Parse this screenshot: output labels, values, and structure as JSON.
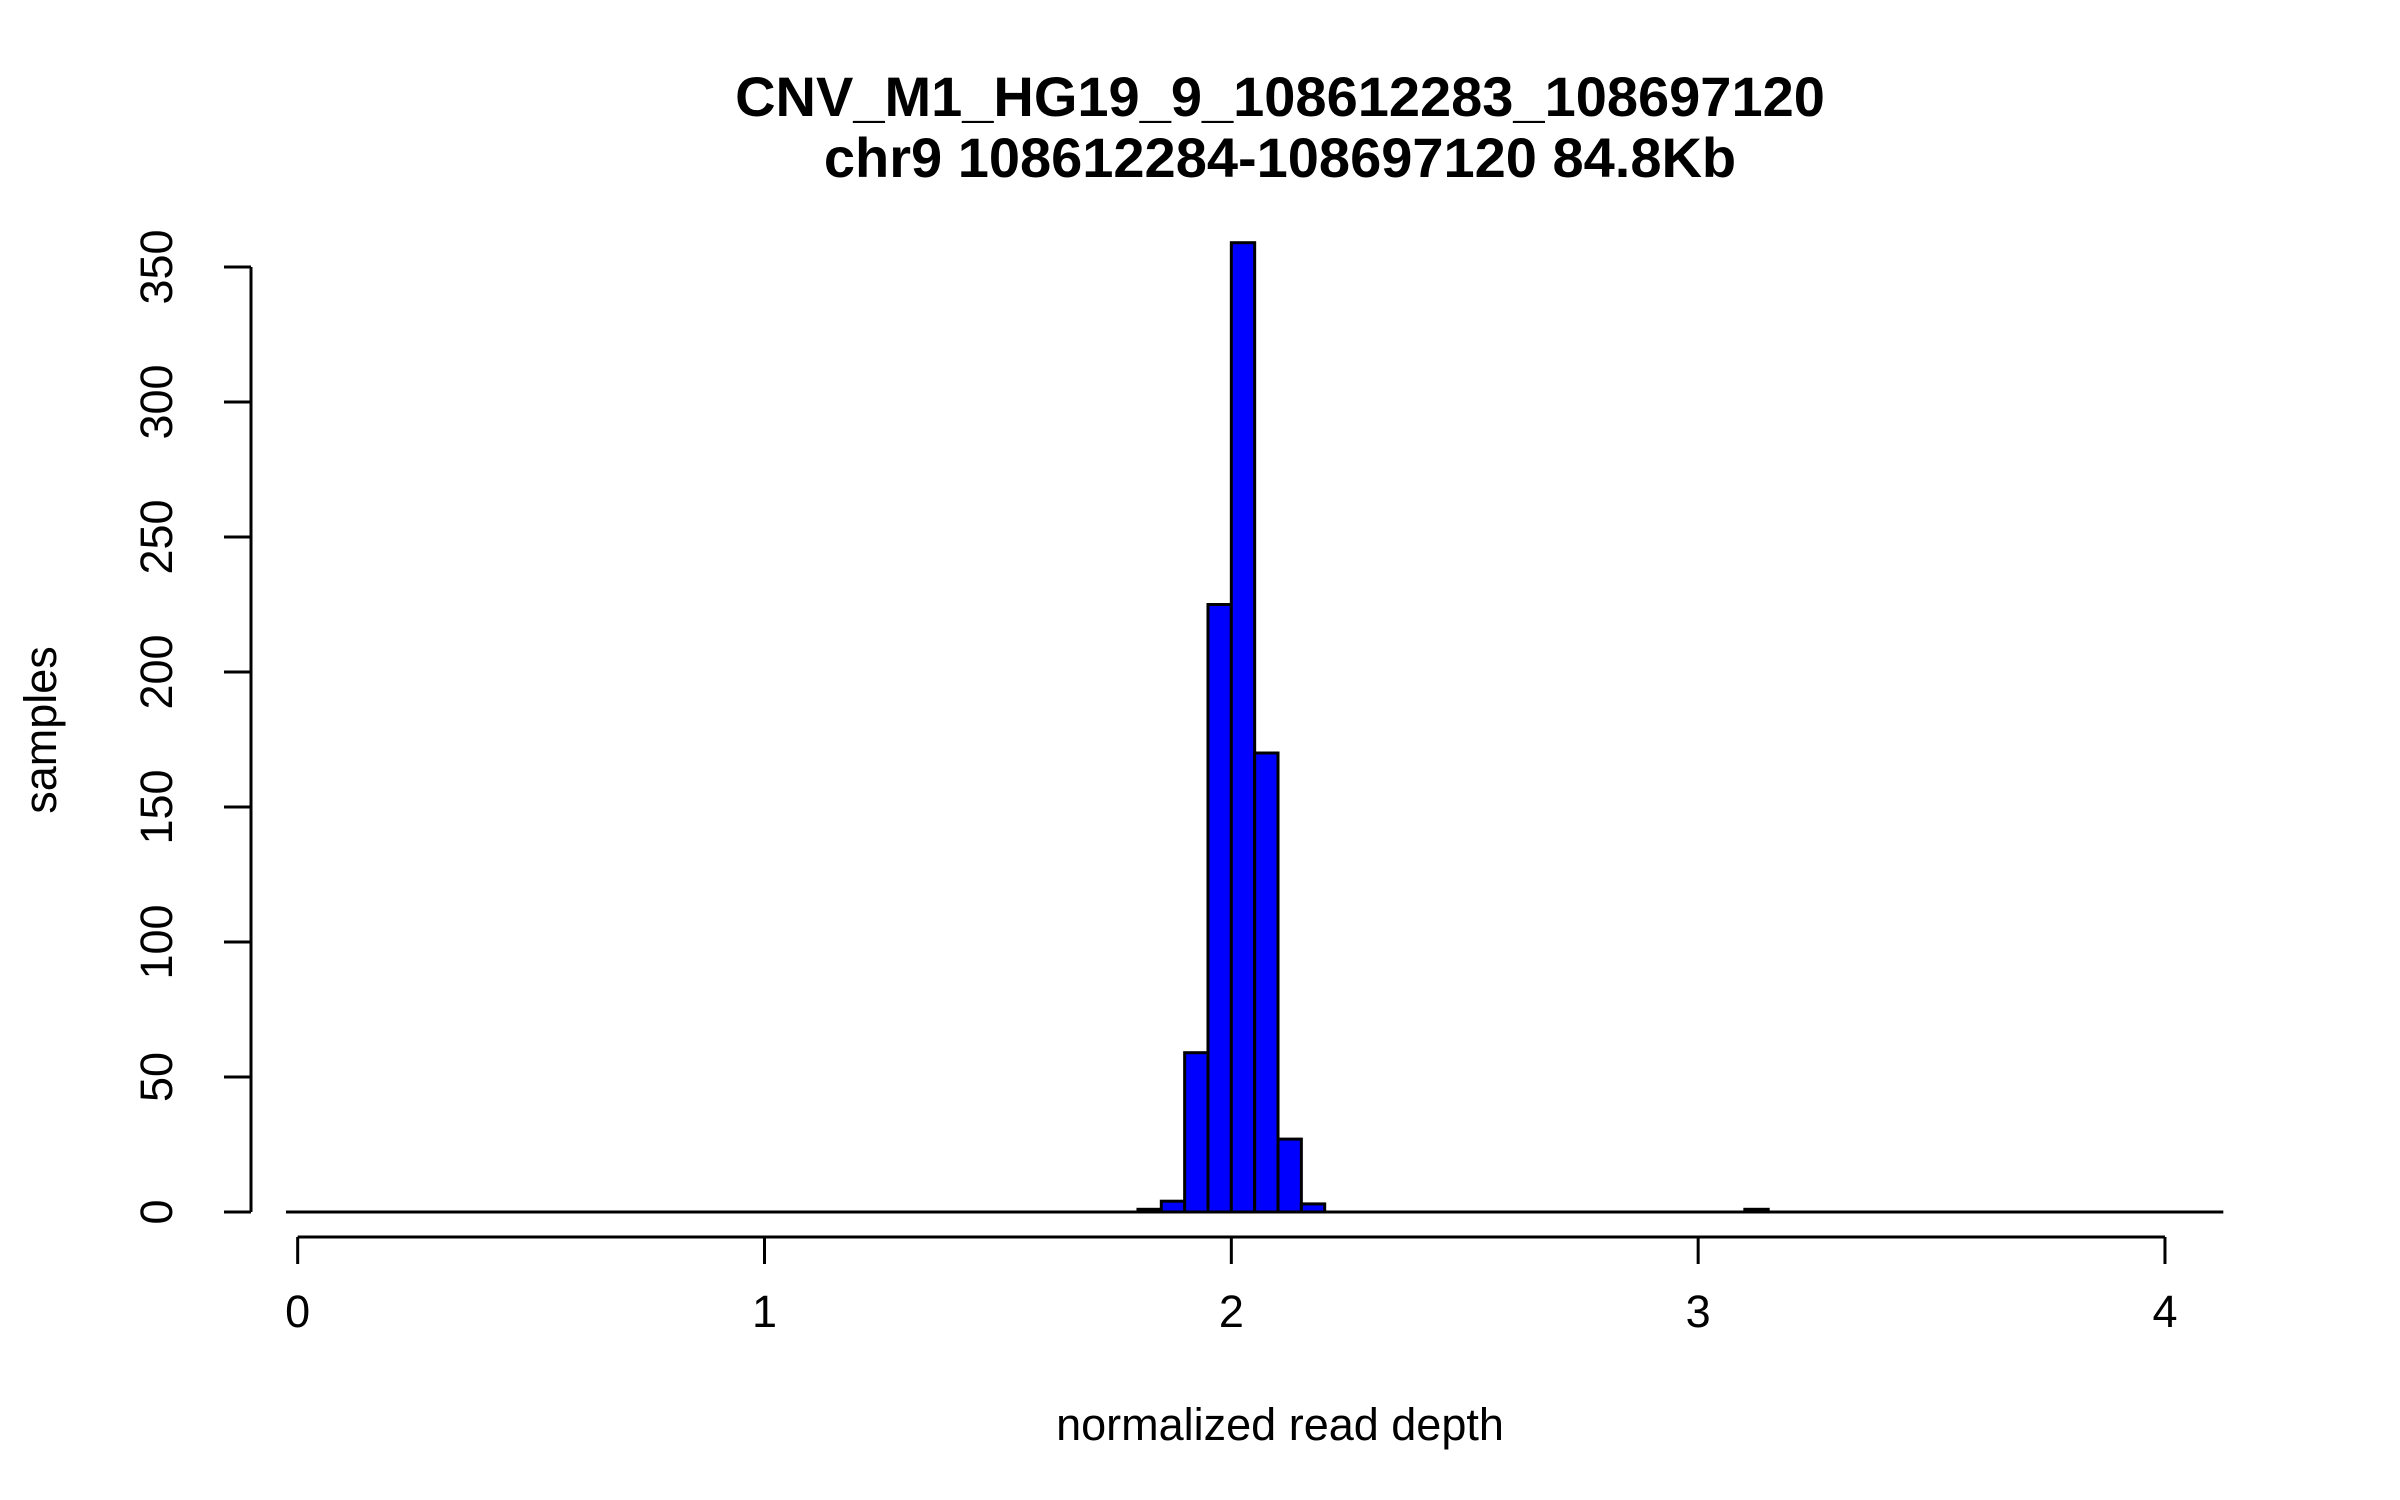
{
  "chart_data": {
    "type": "bar",
    "title": "CNV_M1_HG19_9_108612283_108697120",
    "subtitle": "chr9 108612284-108697120 84.8Kb",
    "xlabel": "normalized read depth",
    "ylabel": "samples",
    "xlim": [
      -0.1,
      4.15
    ],
    "ylim": [
      0,
      360
    ],
    "x_ticks": [
      0,
      1,
      2,
      3,
      4
    ],
    "y_ticks": [
      0,
      50,
      100,
      150,
      200,
      250,
      300,
      350
    ],
    "bar_color": "#0000ff",
    "bin_width": 0.05,
    "baseline_range": [
      -0.025,
      4.125
    ],
    "bins": [
      {
        "start": 1.8,
        "end": 1.85,
        "count": 1
      },
      {
        "start": 1.85,
        "end": 1.9,
        "count": 4
      },
      {
        "start": 1.9,
        "end": 1.95,
        "count": 59
      },
      {
        "start": 1.95,
        "end": 2.0,
        "count": 225
      },
      {
        "start": 2.0,
        "end": 2.05,
        "count": 359
      },
      {
        "start": 2.05,
        "end": 2.1,
        "count": 170
      },
      {
        "start": 2.1,
        "end": 2.15,
        "count": 27
      },
      {
        "start": 2.15,
        "end": 2.2,
        "count": 3
      },
      {
        "start": 3.1,
        "end": 3.15,
        "count": 1
      }
    ]
  }
}
